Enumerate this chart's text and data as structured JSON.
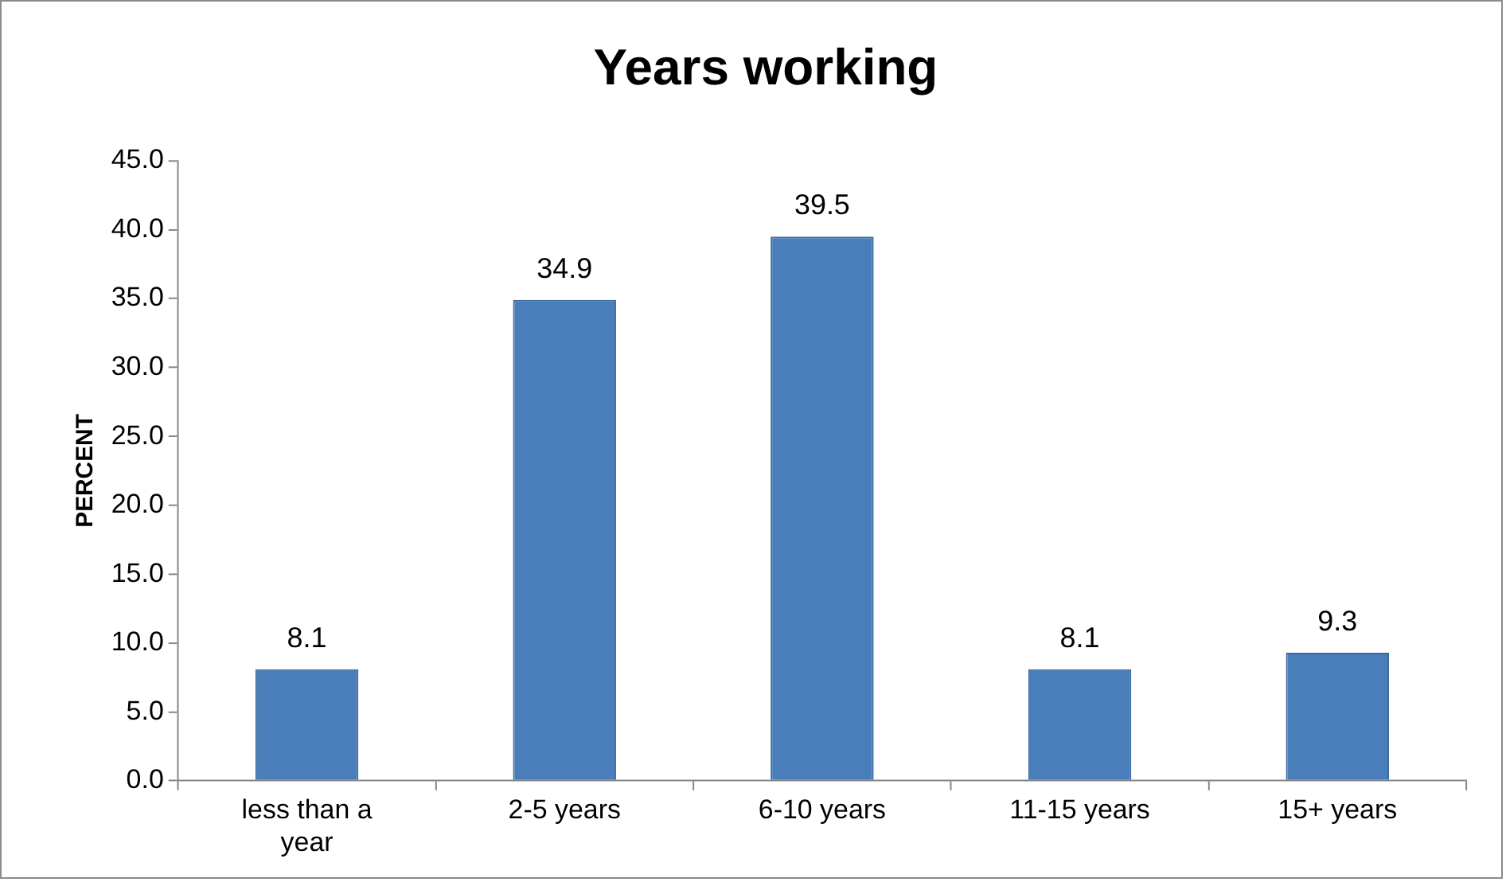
{
  "chart_data": {
    "type": "bar",
    "title": "Years working",
    "ylabel": "PERCENT",
    "categories": [
      "less than a year",
      "2-5 years",
      "6-10 years",
      "11-15 years",
      "15+ years"
    ],
    "values": [
      8.1,
      34.9,
      39.5,
      8.1,
      9.3
    ],
    "color": "#4a7ebb",
    "ylim": [
      0,
      45
    ],
    "yticks": [
      {
        "value": 0,
        "label": "0.0"
      },
      {
        "value": 5,
        "label": "5.0"
      },
      {
        "value": 10,
        "label": "10.0"
      },
      {
        "value": 15,
        "label": "15.0"
      },
      {
        "value": 20,
        "label": "20.0"
      },
      {
        "value": 25,
        "label": "25.0"
      },
      {
        "value": 30,
        "label": "30.0"
      },
      {
        "value": 35,
        "label": "35.0"
      },
      {
        "value": 40,
        "label": "40.0"
      },
      {
        "value": 45,
        "label": "45.0"
      }
    ],
    "grid": false,
    "legend": false,
    "data_labels": true
  }
}
